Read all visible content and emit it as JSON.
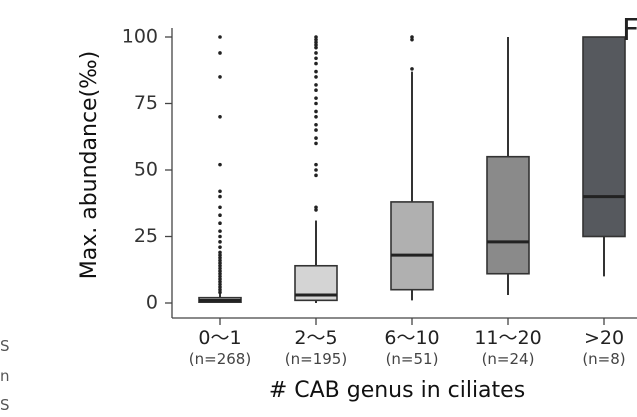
{
  "chart_data": {
    "type": "box",
    "title": "",
    "xlabel": "# CAB genus in ciliates",
    "ylabel": "Max. abundance(‰)",
    "ylim": [
      0,
      100
    ],
    "yticks": [
      0,
      25,
      50,
      75,
      100
    ],
    "grid": false,
    "legend": "none",
    "panel_letter": "F",
    "categories": [
      "0～1",
      "2～5",
      "6～10",
      "11～20",
      ">20"
    ],
    "n_labels": [
      "(n=268)",
      "(n=195)",
      "(n=51)",
      "(n=24)",
      "(n=8)"
    ],
    "boxes": [
      {
        "whisker_low": 0,
        "q1": 0.3,
        "median": 1,
        "q3": 2,
        "whisker_high": 3.5,
        "outliers": [
          4,
          5,
          6,
          7,
          8,
          9,
          10,
          11,
          12,
          13,
          14,
          15,
          16,
          17,
          18,
          19,
          21,
          23,
          25,
          27,
          30,
          33,
          36,
          40,
          42,
          52,
          70,
          85,
          94,
          100
        ]
      },
      {
        "whisker_low": 0,
        "q1": 1,
        "median": 3,
        "q3": 14,
        "whisker_high": 31,
        "outliers": [
          35,
          36,
          48,
          50,
          52,
          60,
          62,
          65,
          67,
          70,
          72,
          75,
          77,
          80,
          82,
          85,
          87,
          90,
          92,
          94,
          96,
          97,
          98,
          99,
          100
        ]
      },
      {
        "whisker_low": 1,
        "q1": 5,
        "median": 18,
        "q3": 38,
        "whisker_high": 87,
        "outliers": [
          88,
          99,
          100
        ]
      },
      {
        "whisker_low": 3,
        "q1": 11,
        "median": 23,
        "q3": 55,
        "whisker_high": 100,
        "outliers": []
      },
      {
        "whisker_low": 10,
        "q1": 25,
        "median": 40,
        "q3": 100,
        "whisker_high": 100,
        "outliers": []
      }
    ],
    "colors": {
      "fills": [
        "#f2f2f2",
        "#d4d4d4",
        "#b0b0b0",
        "#8a8a8a",
        "#56595e"
      ],
      "stroke": "#333333",
      "axis": "#444444"
    }
  },
  "edge_text": [
    "S",
    "n",
    "S"
  ]
}
